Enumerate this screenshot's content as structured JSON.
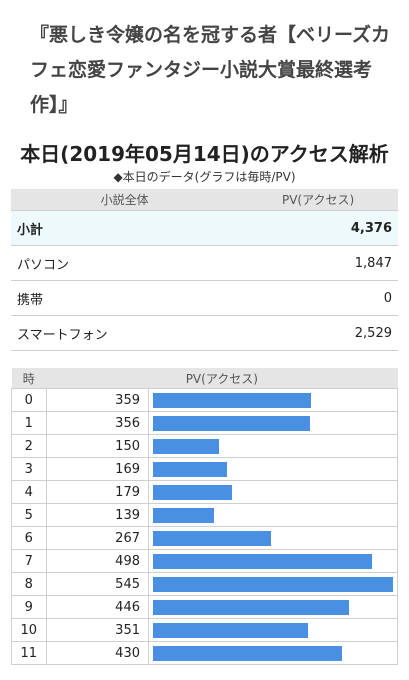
{
  "novel_title": "『悪しき令嬢の名を冠する者【ベリーズカフェ恋愛ファンタジー小説大賞最終選考作】』",
  "section_title": "本日(2019年05月14日)のアクセス解析",
  "section_subtitle": "◆本日のデータ(グラフは毎時/PV)",
  "summary": {
    "header_left": "小説全体",
    "header_right": "PV(アクセス)",
    "rows": [
      {
        "label": "小計",
        "value": "4,376"
      },
      {
        "label": "パソコン",
        "value": "1,847"
      },
      {
        "label": "携帯",
        "value": "0"
      },
      {
        "label": "スマートフォン",
        "value": "2,529"
      }
    ]
  },
  "hourly": {
    "header_hour": "時",
    "header_pv": "PV(アクセス)",
    "bar_color": "#4a90e2",
    "max": 545,
    "rows": [
      {
        "hour": "0",
        "pv": 359
      },
      {
        "hour": "1",
        "pv": 356
      },
      {
        "hour": "2",
        "pv": 150
      },
      {
        "hour": "3",
        "pv": 169
      },
      {
        "hour": "4",
        "pv": 179
      },
      {
        "hour": "5",
        "pv": 139
      },
      {
        "hour": "6",
        "pv": 267
      },
      {
        "hour": "7",
        "pv": 498
      },
      {
        "hour": "8",
        "pv": 545
      },
      {
        "hour": "9",
        "pv": 446
      },
      {
        "hour": "10",
        "pv": 351
      },
      {
        "hour": "11",
        "pv": 430
      }
    ]
  }
}
